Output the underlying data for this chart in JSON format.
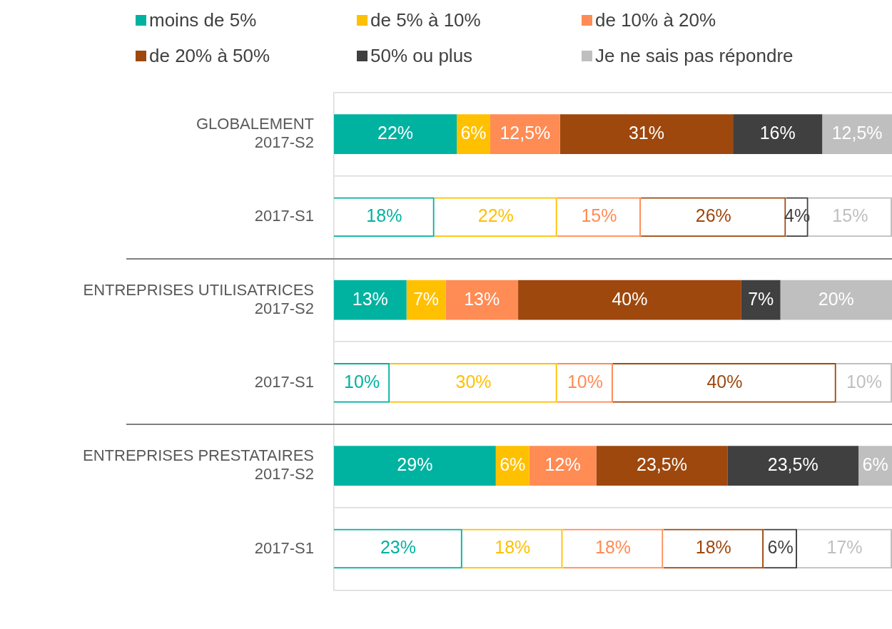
{
  "chart_data": {
    "type": "bar",
    "orientation": "horizontal",
    "stacked": true,
    "legend": "top",
    "grid": "y",
    "xlim": [
      0,
      100
    ],
    "categories": [
      "GLOBALEMENT\n2017-S2",
      "2017-S1",
      "ENTREPRISES UTILISATRICES\n2017-S2",
      "2017-S1",
      "ENTREPRISES PRESTATAIRES\n2017-S2",
      "2017-S1"
    ],
    "series": [
      {
        "name": "moins de 5%",
        "color": "#00b2a0",
        "values": [
          22,
          18,
          13,
          10,
          29,
          23
        ],
        "value_labels": [
          "22%",
          "18%",
          "13%",
          "10%",
          "29%",
          "23%"
        ]
      },
      {
        "name": "de 5% à 10%",
        "color": "#ffc000",
        "values": [
          6,
          22,
          7,
          30,
          6,
          18
        ],
        "value_labels": [
          "6%",
          "22%",
          "7%",
          "30%",
          "6%",
          "18%"
        ]
      },
      {
        "name": "de 10% à 20%",
        "color": "#ff8b55",
        "values": [
          12.5,
          15,
          13,
          10,
          12,
          18
        ],
        "value_labels": [
          "12,5%",
          "15%",
          "13%",
          "10%",
          "12%",
          "18%"
        ]
      },
      {
        "name": "de 20% à 50%",
        "color": "#9e480e",
        "values": [
          31,
          26,
          40,
          40,
          23.5,
          18
        ],
        "value_labels": [
          "31%",
          "26%",
          "40%",
          "40%",
          "23,5%",
          "18%"
        ]
      },
      {
        "name": "50% ou plus",
        "color": "#404040",
        "values": [
          16,
          4,
          7,
          null,
          23.5,
          6
        ],
        "value_labels": [
          "16%",
          "4%",
          "7%",
          null,
          "23,5%",
          "6%"
        ]
      },
      {
        "name": "Je ne sais pas répondre",
        "color": "#bfbfbf",
        "values": [
          12.5,
          15,
          20,
          10,
          6,
          17
        ],
        "value_labels": [
          "12,5%",
          "15%",
          "20%",
          "10%",
          "6%",
          "17%"
        ]
      }
    ]
  }
}
